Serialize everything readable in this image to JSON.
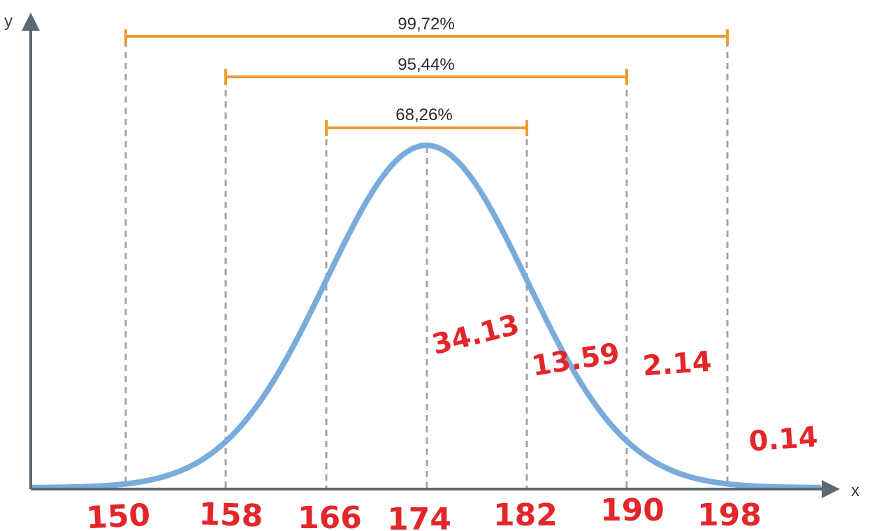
{
  "diagram": {
    "axes": {
      "x_label": "x",
      "y_label": "y"
    },
    "mean": 174,
    "sd": 8,
    "tick_labels": [
      "150",
      "158",
      "166",
      "174",
      "182",
      "190",
      "198"
    ],
    "intervals": [
      {
        "label": "99,72%",
        "from": 150,
        "to": 198
      },
      {
        "label": "95,44%",
        "from": 158,
        "to": 190
      },
      {
        "label": "68,26%",
        "from": 166,
        "to": 182
      }
    ],
    "handwritten_areas": [
      "34.13",
      "13.59",
      "2.14",
      "0.14"
    ],
    "colors": {
      "curve": "#79acdb",
      "bracket": "#ee9a32",
      "guide": "#a3a3ab",
      "axis": "#5f6775",
      "handwriting": "#e3262a"
    }
  }
}
